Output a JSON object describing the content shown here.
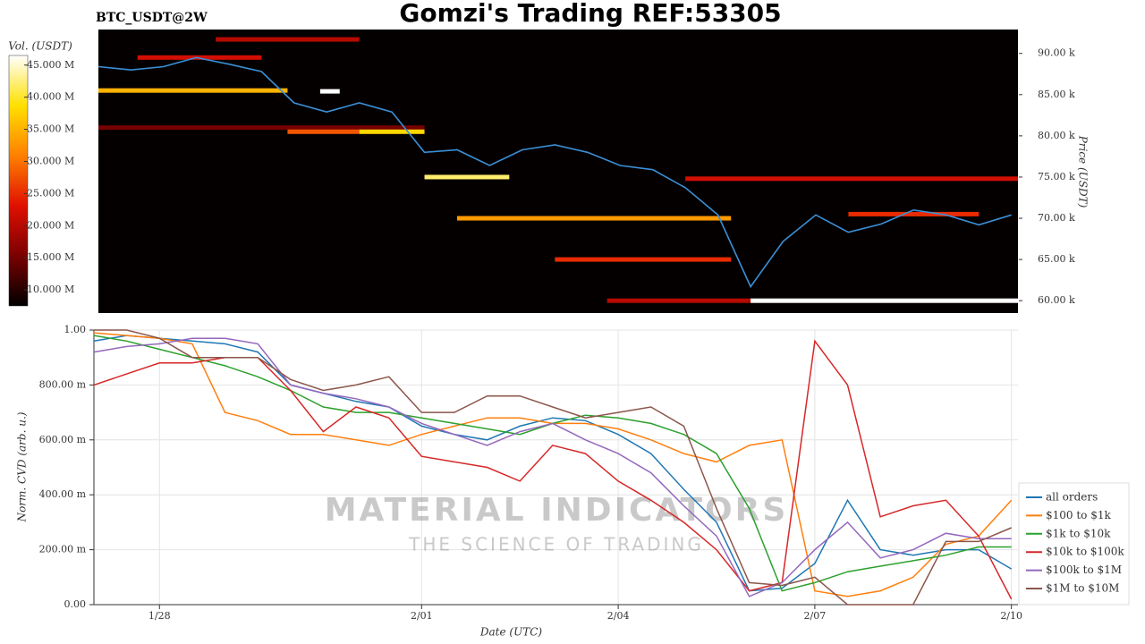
{
  "chart_data": [
    {
      "type": "heatmap",
      "title": "Gomzi's Trading REF:53305",
      "subtitle": "BTC_USDT@2W",
      "ylabel": "Price (USDT)",
      "colorbar_label": "Vol. (USDT)",
      "colormap": [
        "#000000",
        "#7a0000",
        "#e01000",
        "#ff8000",
        "#ffe000",
        "#ffffff"
      ],
      "clim": [
        7500000,
        46500000
      ],
      "cticks": [
        {
          "value": 10000000,
          "label": "10.000 M"
        },
        {
          "value": 15000000,
          "label": "15.000 M"
        },
        {
          "value": 20000000,
          "label": "20.000 M"
        },
        {
          "value": 25000000,
          "label": "25.000 M"
        },
        {
          "value": 30000000,
          "label": "30.000 M"
        },
        {
          "value": 35000000,
          "label": "35.000 M"
        },
        {
          "value": 40000000,
          "label": "40.000 M"
        },
        {
          "value": 45000000,
          "label": "45.000 M"
        }
      ],
      "xlim": [
        27.0,
        41.1
      ],
      "ylim": [
        58500,
        92900
      ],
      "yticks": [
        {
          "value": 60000,
          "label": "60.00 k"
        },
        {
          "value": 65000,
          "label": "65.00 k"
        },
        {
          "value": 70000,
          "label": "70.00 k"
        },
        {
          "value": 75000,
          "label": "75.00 k"
        },
        {
          "value": 80000,
          "label": "80.00 k"
        },
        {
          "value": 85000,
          "label": "85.00 k"
        },
        {
          "value": 90000,
          "label": "90.00 k"
        }
      ],
      "color": "#3a8fd6",
      "x": [
        27,
        27.5,
        28,
        28.5,
        29,
        29.5,
        30,
        30.5,
        31,
        31.5,
        32,
        32.5,
        33,
        33.5,
        34,
        34.5,
        35,
        35.5,
        36,
        36.5,
        37,
        37.5,
        38,
        38.5,
        39,
        39.5,
        40,
        40.5,
        41
      ],
      "values": [
        88400,
        88000,
        88400,
        89500,
        88700,
        87800,
        84000,
        82900,
        84000,
        82900,
        78000,
        78300,
        76400,
        78300,
        78900,
        78000,
        76400,
        75900,
        73700,
        70400,
        61700,
        67200,
        70400,
        68300,
        69300,
        71000,
        70400,
        69200,
        70400
      ],
      "bands": [
        {
          "price": 91700,
          "start": 28.8,
          "end": 31.0,
          "volume": 20000000
        },
        {
          "price": 89500,
          "start": 27.6,
          "end": 29.5,
          "volume": 22000000
        },
        {
          "price": 85500,
          "start": 27.0,
          "end": 29.9,
          "volume": 35000000
        },
        {
          "price": 85400,
          "start": 30.4,
          "end": 30.7,
          "volume": 46500000
        },
        {
          "price": 81000,
          "start": 27.0,
          "end": 32.0,
          "volume": 15000000
        },
        {
          "price": 80500,
          "start": 29.9,
          "end": 31.0,
          "volume": 28000000
        },
        {
          "price": 80500,
          "start": 31.0,
          "end": 32.0,
          "volume": 38000000
        },
        {
          "price": 75000,
          "start": 32.0,
          "end": 33.3,
          "volume": 42000000
        },
        {
          "price": 74800,
          "start": 36.0,
          "end": 41.1,
          "volume": 22000000
        },
        {
          "price": 70500,
          "start": 38.5,
          "end": 40.5,
          "volume": 25000000
        },
        {
          "price": 70000,
          "start": 32.5,
          "end": 36.7,
          "volume": 33000000
        },
        {
          "price": 65000,
          "start": 34.0,
          "end": 36.7,
          "volume": 25000000
        },
        {
          "price": 60000,
          "start": 34.8,
          "end": 37.0,
          "volume": 20000000
        },
        {
          "price": 60000,
          "start": 37.0,
          "end": 41.1,
          "volume": 46500000
        }
      ]
    },
    {
      "type": "line",
      "xlabel": "Date (UTC)",
      "ylabel": "Norm. CVD (arb. u.)",
      "watermark": {
        "title": "MATERIAL INDICATORS",
        "subtitle": "THE SCIENCE OF TRADING"
      },
      "grid": true,
      "xlim": [
        27.0,
        41.1
      ],
      "xticks": [
        {
          "value": 28,
          "label": "1/28"
        },
        {
          "value": 32,
          "label": "2/01"
        },
        {
          "value": 35,
          "label": "2/04"
        },
        {
          "value": 38,
          "label": "2/07"
        },
        {
          "value": 41,
          "label": "2/10"
        }
      ],
      "ylim": [
        0,
        1
      ],
      "yticks": [
        {
          "value": 0,
          "label": "0.00"
        },
        {
          "value": 0.2,
          "label": "200.00 m"
        },
        {
          "value": 0.4,
          "label": "400.00 m"
        },
        {
          "value": 0.6,
          "label": "600.00 m"
        },
        {
          "value": 0.8,
          "label": "800.00 m"
        },
        {
          "value": 1,
          "label": "1.00"
        }
      ],
      "x": [
        27,
        27.5,
        28,
        28.5,
        29,
        29.5,
        30,
        30.5,
        31,
        31.5,
        32,
        32.5,
        33,
        33.5,
        34,
        34.5,
        35,
        35.5,
        36,
        36.5,
        37,
        37.5,
        38,
        38.5,
        39,
        39.5,
        40,
        40.5,
        41
      ],
      "series": [
        {
          "name": "all orders",
          "color": "#1f77b4",
          "values": [
            0.96,
            0.98,
            0.97,
            0.96,
            0.95,
            0.92,
            0.8,
            0.77,
            0.74,
            0.72,
            0.65,
            0.62,
            0.6,
            0.65,
            0.68,
            0.67,
            0.62,
            0.55,
            0.42,
            0.3,
            0.05,
            0.06,
            0.15,
            0.38,
            0.2,
            0.18,
            0.2,
            0.2,
            0.13
          ]
        },
        {
          "name": "$100 to $1k",
          "color": "#ff7f0e",
          "values": [
            0.99,
            0.98,
            0.97,
            0.95,
            0.7,
            0.67,
            0.62,
            0.62,
            0.6,
            0.58,
            0.62,
            0.65,
            0.68,
            0.68,
            0.66,
            0.66,
            0.64,
            0.6,
            0.55,
            0.52,
            0.58,
            0.6,
            0.05,
            0.03,
            0.05,
            0.1,
            0.22,
            0.25,
            0.38
          ]
        },
        {
          "name": "$1k to $10k",
          "color": "#2ca02c",
          "values": [
            0.98,
            0.96,
            0.93,
            0.9,
            0.87,
            0.83,
            0.78,
            0.72,
            0.7,
            0.7,
            0.68,
            0.66,
            0.64,
            0.62,
            0.66,
            0.69,
            0.68,
            0.66,
            0.62,
            0.55,
            0.35,
            0.05,
            0.08,
            0.12,
            0.14,
            0.16,
            0.18,
            0.21,
            0.21
          ]
        },
        {
          "name": "$10k to $100k",
          "color": "#d62728",
          "values": [
            0.8,
            0.84,
            0.88,
            0.88,
            0.9,
            0.9,
            0.78,
            0.63,
            0.72,
            0.68,
            0.54,
            0.52,
            0.5,
            0.45,
            0.58,
            0.55,
            0.45,
            0.38,
            0.3,
            0.2,
            0.05,
            0.08,
            0.96,
            0.8,
            0.32,
            0.36,
            0.38,
            0.25,
            0.02
          ]
        },
        {
          "name": "$100k to $1M",
          "color": "#9467bd",
          "values": [
            0.92,
            0.94,
            0.95,
            0.97,
            0.97,
            0.95,
            0.8,
            0.77,
            0.75,
            0.72,
            0.66,
            0.62,
            0.58,
            0.63,
            0.66,
            0.6,
            0.55,
            0.48,
            0.36,
            0.25,
            0.03,
            0.08,
            0.2,
            0.3,
            0.17,
            0.2,
            0.26,
            0.24,
            0.24
          ]
        },
        {
          "name": "$1M to $10M",
          "color": "#8c564b",
          "values": [
            1.0,
            1.0,
            0.97,
            0.9,
            0.9,
            0.9,
            0.82,
            0.78,
            0.8,
            0.83,
            0.7,
            0.7,
            0.76,
            0.76,
            0.72,
            0.68,
            0.7,
            0.72,
            0.65,
            0.35,
            0.08,
            0.07,
            0.1,
            0.0,
            0.0,
            0.0,
            0.23,
            0.23,
            0.28
          ]
        }
      ]
    }
  ]
}
